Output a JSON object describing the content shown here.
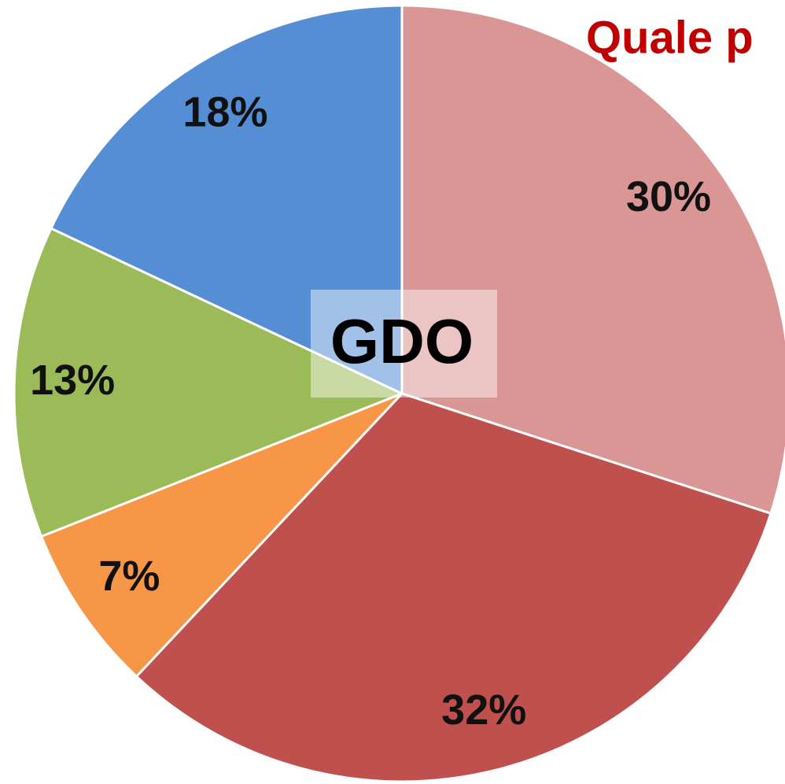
{
  "chart_data": {
    "type": "pie",
    "title": "Quale p",
    "center_label": "GDO",
    "categories": [
      null,
      null,
      null,
      null,
      null
    ],
    "values": [
      30,
      32,
      7,
      13,
      18
    ],
    "value_labels": [
      "30%",
      "32%",
      "7%",
      "13%",
      "18%"
    ],
    "colors": [
      "#d99694",
      "#c0504d",
      "#f79646",
      "#9bbb59",
      "#558ed5"
    ]
  }
}
